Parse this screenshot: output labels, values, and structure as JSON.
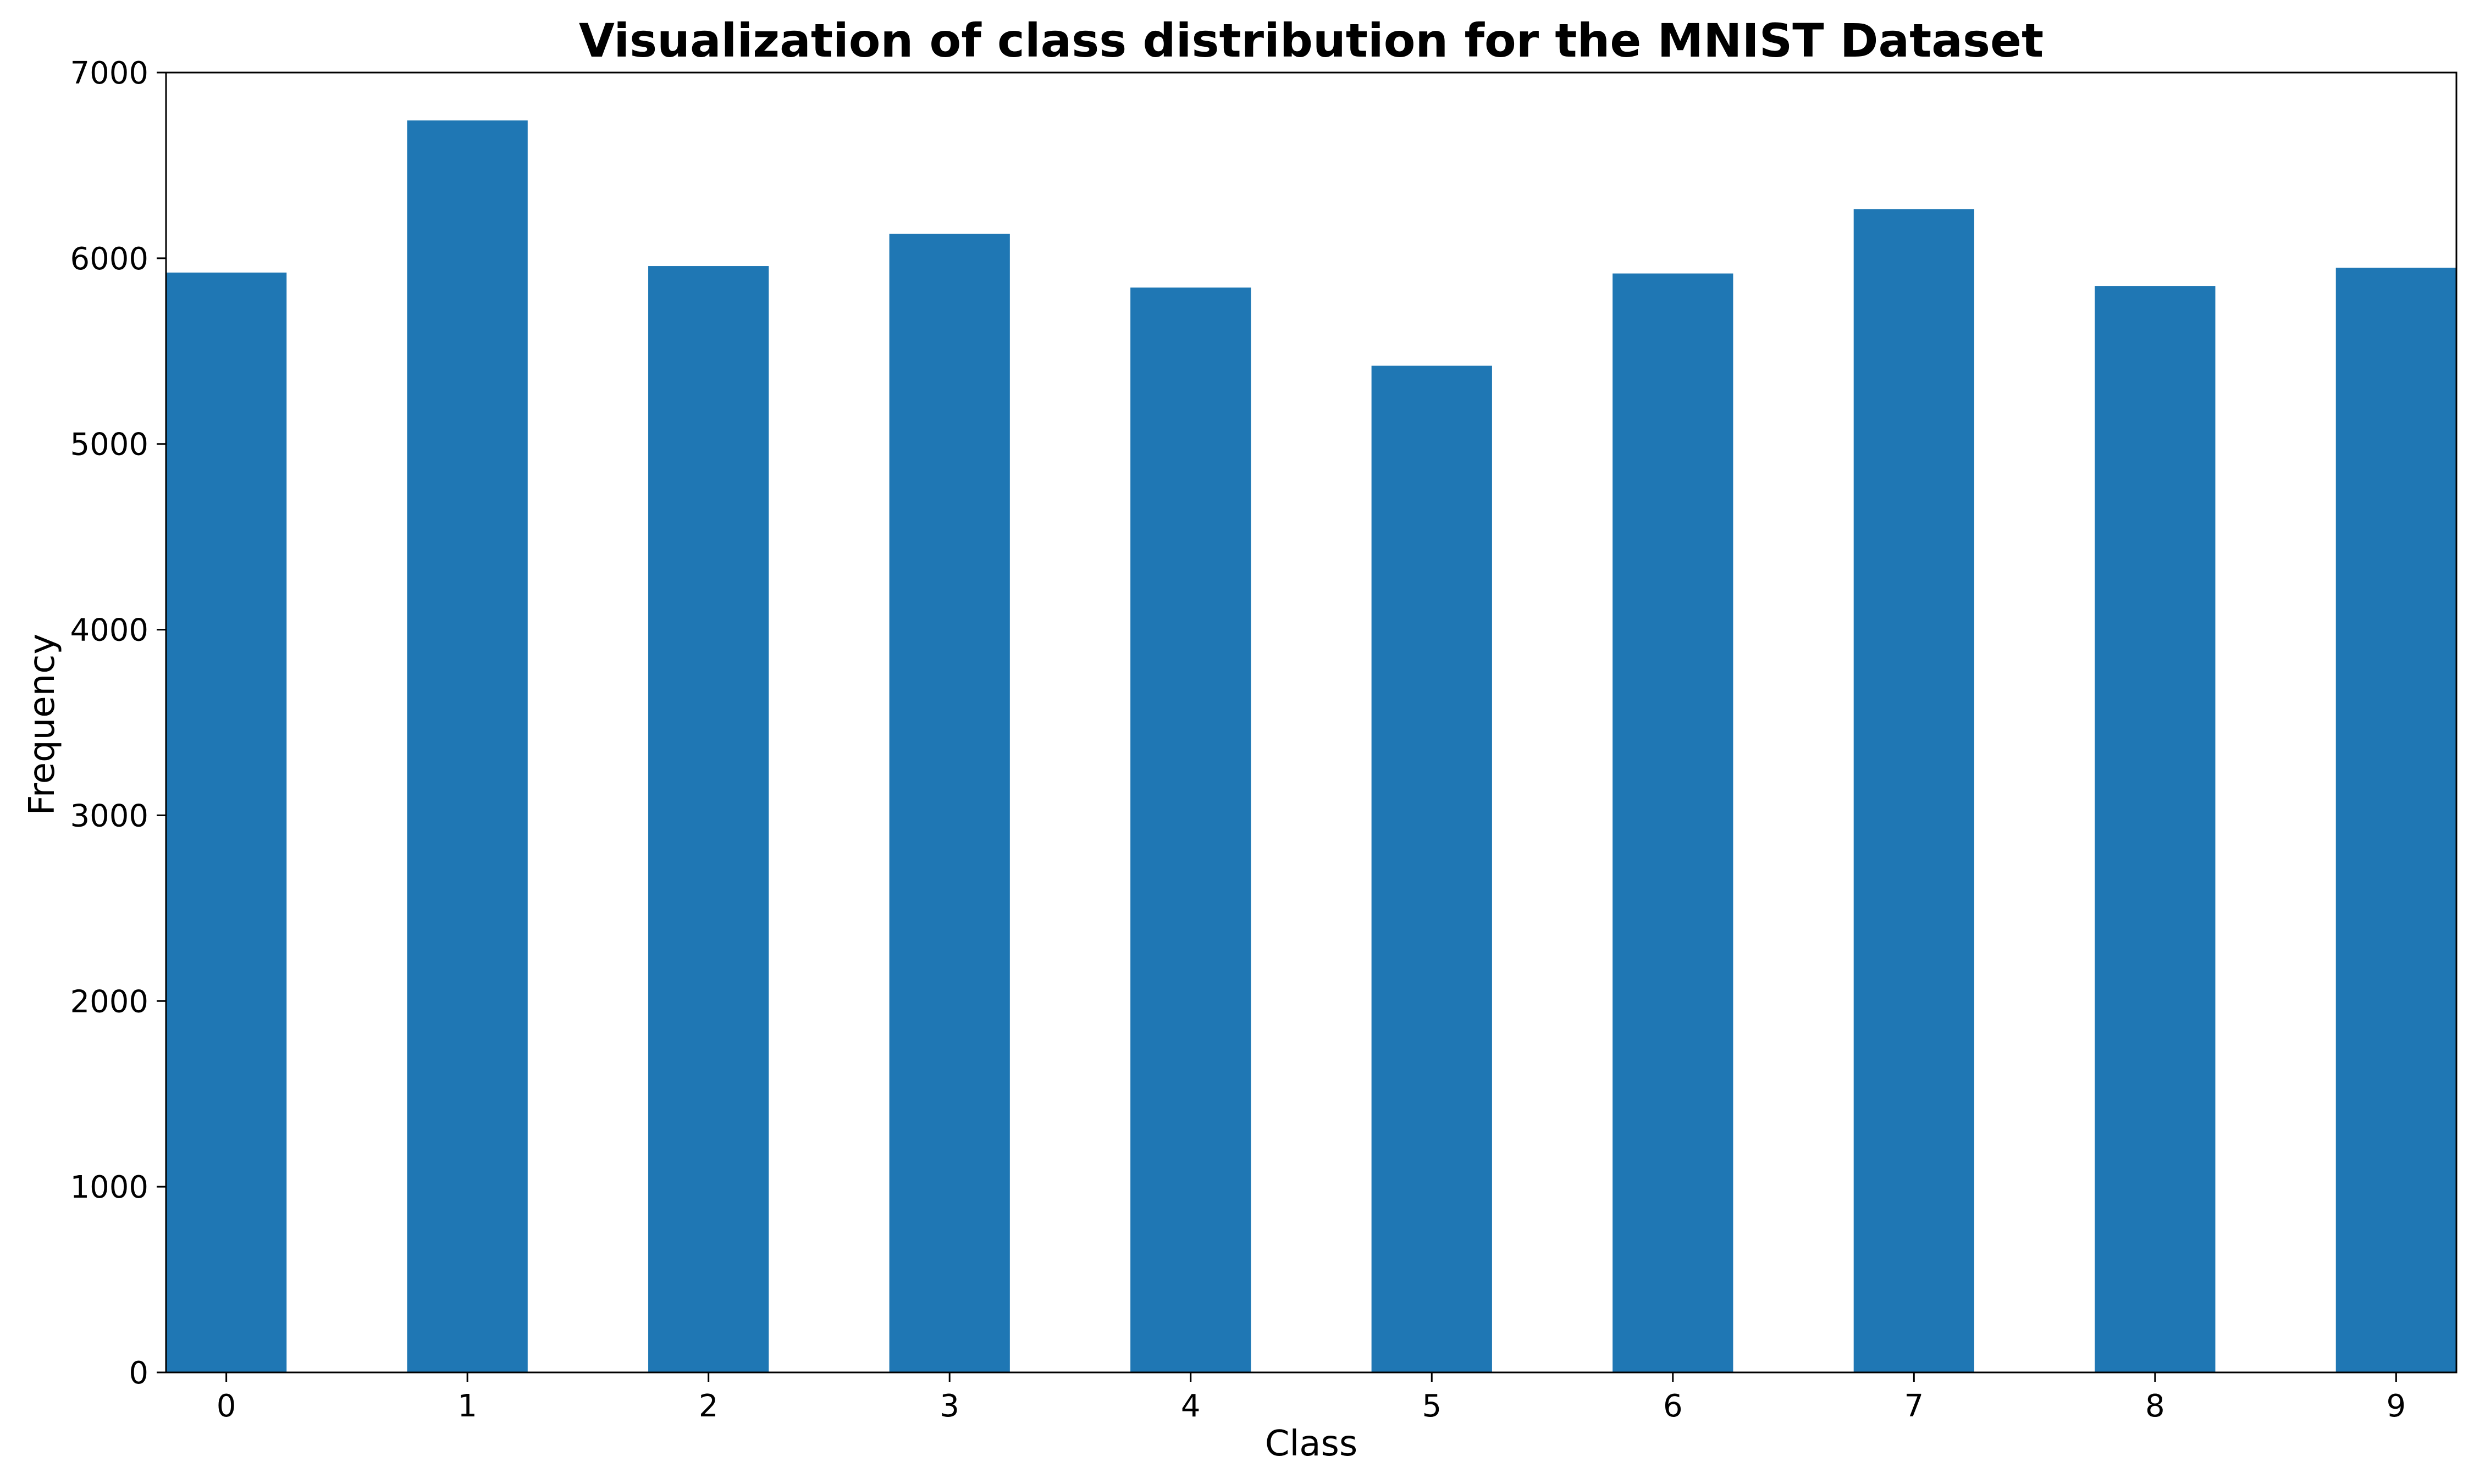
{
  "chart_data": {
    "type": "bar",
    "title": "Visualization of class distribution for the MNIST Dataset",
    "xlabel": "Class",
    "ylabel": "Frequency",
    "categories": [
      "0",
      "1",
      "2",
      "3",
      "4",
      "5",
      "6",
      "7",
      "8",
      "9"
    ],
    "values": [
      5923,
      6742,
      5958,
      6131,
      5842,
      5421,
      5918,
      6265,
      5851,
      5949
    ],
    "ylim": [
      0,
      7000
    ],
    "yticks": [
      "0",
      "1000",
      "2000",
      "3000",
      "4000",
      "5000",
      "6000",
      "7000"
    ],
    "grid": false,
    "legend": "none",
    "bar_color": "#1f77b4"
  }
}
